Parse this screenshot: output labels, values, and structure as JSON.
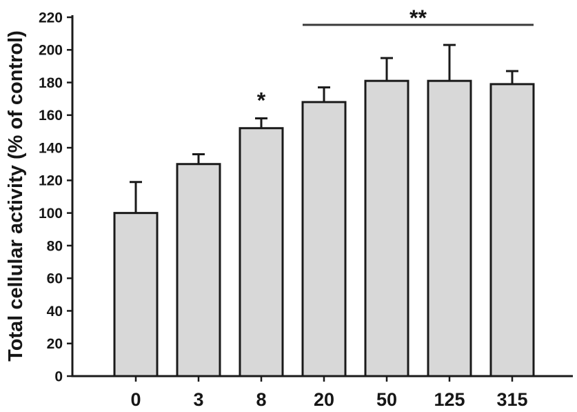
{
  "figure": {
    "background": "#ffffff"
  },
  "chart_data": {
    "type": "bar",
    "title": "",
    "xlabel": "",
    "ylabel": "Total cellular activity (% of control)",
    "categories": [
      "0",
      "3",
      "8",
      "20",
      "50",
      "125",
      "315"
    ],
    "values": [
      100,
      130,
      152,
      168,
      181,
      181,
      179
    ],
    "errors_upper": [
      19,
      6,
      6,
      9,
      14,
      22,
      8
    ],
    "ylim": [
      0,
      220
    ],
    "ytick_step": 20,
    "grid": false,
    "legend": "none",
    "bar_fill": "#d8d8d8",
    "bar_border": "#1a1a1a",
    "axis_color": "#1a1a1a",
    "bracket_color": "#3a3a3a",
    "annotations": [
      {
        "type": "star",
        "label": "*",
        "category": "8"
      },
      {
        "type": "bracket",
        "label": "**",
        "from_category": "20",
        "to_category": "315"
      }
    ]
  }
}
